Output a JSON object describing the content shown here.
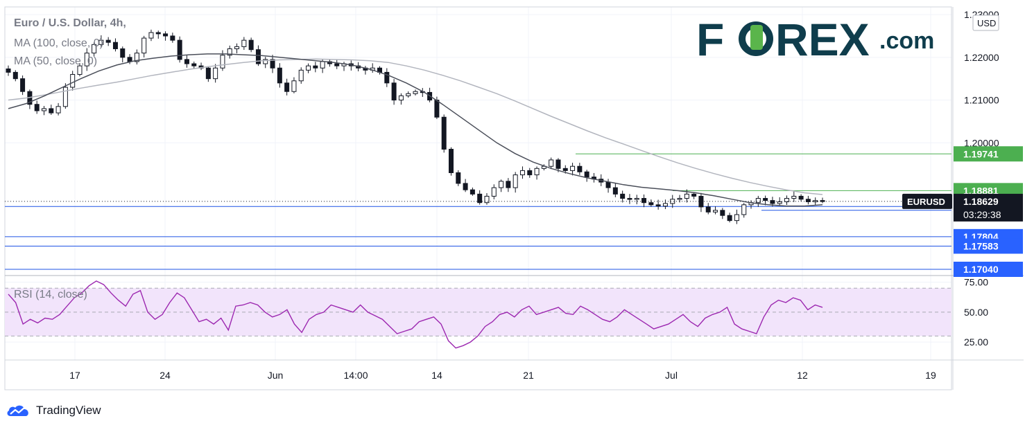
{
  "chart_data": {
    "type": "candlestick",
    "title": "Euro / U.S. Dollar, 4h,",
    "indicators": [
      {
        "name": "MA (100, close, 0)",
        "color": "#b2b5be"
      },
      {
        "name": "MA (50, close, 0)",
        "color": "#4a4e59"
      }
    ],
    "symbol": "EURUSD",
    "last_price": "1.18629",
    "countdown": "03:29:38",
    "currency": "USD",
    "price_axis": {
      "ticks": [
        "1.23000",
        "1.22000",
        "1.21000",
        "1.20000"
      ],
      "range": [
        1.1704,
        1.2305
      ]
    },
    "x_axis": {
      "ticks": [
        "17",
        "24",
        "Jun",
        "14:00",
        "14",
        "21",
        "Jul",
        "12",
        "19"
      ]
    },
    "levels": [
      {
        "label": "1.19741",
        "value": 1.19741,
        "color": "#4caf50",
        "line": "#4caf50"
      },
      {
        "label": "1.18881",
        "value": 1.18881,
        "color": "#4caf50",
        "line": "#4caf50"
      },
      {
        "label": "1.18420",
        "value": 1.1842,
        "color": "#2962ff",
        "line": "#1e53e5"
      },
      {
        "label": "1.17804",
        "value": 1.17804,
        "color": "#2962ff",
        "line": "#1e53e5"
      },
      {
        "label": "1.17583",
        "value": 1.17583,
        "color": "#2962ff",
        "line": "#1e53e5"
      },
      {
        "label": "1.17040",
        "value": 1.1704,
        "color": "#2962ff",
        "line": "#1e53e5"
      }
    ],
    "close_path": [
      1.2165,
      1.215,
      1.212,
      1.209,
      1.2075,
      1.208,
      1.207,
      1.2085,
      1.213,
      1.216,
      1.218,
      1.221,
      1.223,
      1.224,
      1.2235,
      1.222,
      1.22,
      1.219,
      1.221,
      1.2245,
      1.2258,
      1.2255,
      1.225,
      1.224,
      1.2195,
      1.2185,
      1.218,
      1.2175,
      1.215,
      1.2175,
      1.2205,
      1.222,
      1.2225,
      1.224,
      1.2218,
      1.2185,
      1.2195,
      1.2175,
      1.214,
      1.212,
      1.2145,
      1.217,
      1.218,
      1.2175,
      1.219,
      1.2185,
      1.218,
      1.2185,
      1.218,
      1.2175,
      1.217,
      1.2175,
      1.2165,
      1.214,
      1.21,
      1.211,
      1.2115,
      1.212,
      1.2118,
      1.21,
      1.206,
      1.1985,
      1.193,
      1.1905,
      1.189,
      1.188,
      1.186,
      1.1875,
      1.1895,
      1.191,
      1.1895,
      1.1925,
      1.1935,
      1.1925,
      1.194,
      1.1945,
      1.196,
      1.194,
      1.1935,
      1.1945,
      1.1932,
      1.192,
      1.1915,
      1.1908,
      1.1895,
      1.188,
      1.187,
      1.1868,
      1.187,
      1.186,
      1.1855,
      1.1852,
      1.1858,
      1.1868,
      1.187,
      1.188,
      1.1875,
      1.185,
      1.1838,
      1.1842,
      1.183,
      1.1818,
      1.1832,
      1.1855,
      1.186,
      1.187,
      1.1865,
      1.1858,
      1.1862,
      1.187,
      1.1875,
      1.1868,
      1.1862,
      1.1865,
      1.1863
    ],
    "ma100_path": [
      1.21,
      1.2105,
      1.2112,
      1.212,
      1.2128,
      1.2135,
      1.2142,
      1.215,
      1.2158,
      1.2165,
      1.2172,
      1.2178,
      1.2183,
      1.2188,
      1.2192,
      1.2194,
      1.2195,
      1.2196,
      1.2195,
      1.2194,
      1.2192,
      1.2188,
      1.218,
      1.217,
      1.2158,
      1.2145,
      1.213,
      1.2115,
      1.2098,
      1.208,
      1.2062,
      1.2045,
      1.2028,
      1.2012,
      1.1997,
      1.1982,
      1.1967,
      1.1953,
      1.194,
      1.1928,
      1.1917,
      1.1907,
      1.1898,
      1.189,
      1.1883,
      1.1879
    ],
    "ma50_path": [
      1.208,
      1.2092,
      1.211,
      1.213,
      1.215,
      1.2168,
      1.2182,
      1.2192,
      1.2198,
      1.2203,
      1.2206,
      1.2208,
      1.2208,
      1.2206,
      1.2204,
      1.22,
      1.2196,
      1.2192,
      1.2188,
      1.2182,
      1.2172,
      1.2158,
      1.214,
      1.2118,
      1.209,
      1.206,
      1.203,
      1.2,
      1.1975,
      1.1955,
      1.194,
      1.1928,
      1.1918,
      1.191,
      1.1902,
      1.1896,
      1.1892,
      1.1888,
      1.1883,
      1.1876,
      1.1868,
      1.186,
      1.1855,
      1.1852,
      1.1852,
      1.1855
    ],
    "rsi": {
      "label": "RSI (14, close)",
      "ticks": [
        "75.00",
        "50.00",
        "25.00"
      ],
      "upper": 70,
      "lower": 30,
      "values": [
        65,
        58,
        40,
        44,
        41,
        45,
        44,
        48,
        55,
        62,
        66,
        72,
        76,
        73,
        66,
        60,
        55,
        65,
        68,
        50,
        44,
        48,
        58,
        66,
        62,
        52,
        42,
        44,
        40,
        45,
        35,
        55,
        56,
        58,
        56,
        50,
        46,
        48,
        52,
        40,
        33,
        44,
        48,
        50,
        56,
        54,
        52,
        50,
        56,
        50,
        47,
        44,
        38,
        32,
        34,
        36,
        42,
        44,
        46,
        40,
        26,
        20,
        22,
        25,
        30,
        38,
        42,
        48,
        50,
        46,
        52,
        55,
        48,
        50,
        52,
        54,
        49,
        48,
        55,
        52,
        48,
        44,
        42,
        46,
        52,
        48,
        44,
        40,
        36,
        38,
        40,
        44,
        48,
        42,
        38,
        45,
        48,
        50,
        54,
        40,
        36,
        34,
        32,
        46,
        56,
        60,
        58,
        62,
        60,
        52,
        56,
        54
      ]
    }
  },
  "brand": {
    "forex_logo": "FOREX.com",
    "tradingview": "TradingView"
  }
}
